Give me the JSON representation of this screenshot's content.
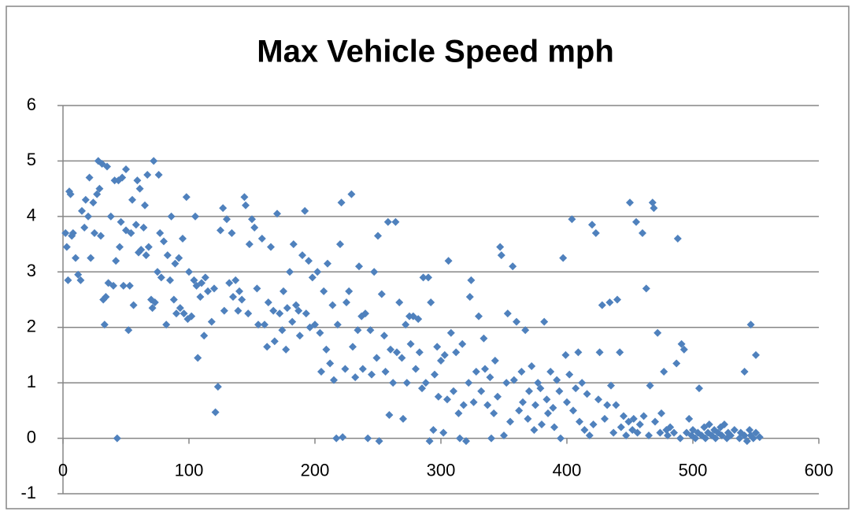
{
  "chart_data": {
    "type": "scatter",
    "title": "Max Vehicle Speed mph",
    "series": [
      {
        "color": "#4f81bd",
        "x": [
          2,
          3,
          4,
          5,
          6,
          7,
          8,
          10,
          12,
          14,
          15,
          17,
          18,
          20,
          21,
          22,
          24,
          25,
          27,
          28,
          29,
          30,
          31,
          32,
          33,
          34,
          35,
          36,
          38,
          40,
          41,
          42,
          43,
          44,
          45,
          46,
          47,
          48,
          50,
          50,
          52,
          53,
          54,
          55,
          56,
          58,
          59,
          60,
          61,
          62,
          64,
          65,
          66,
          67,
          68,
          70,
          71,
          72,
          73,
          75,
          76,
          77,
          78,
          80,
          82,
          83,
          85,
          86,
          88,
          89,
          90,
          92,
          93,
          95,
          96,
          98,
          99,
          100,
          102,
          104,
          105,
          106,
          107,
          109,
          110,
          112,
          113,
          115,
          118,
          120,
          121,
          123,
          125,
          127,
          128,
          130,
          132,
          134,
          135,
          137,
          139,
          140,
          142,
          144,
          145,
          147,
          148,
          150,
          152,
          154,
          155,
          158,
          160,
          162,
          163,
          165,
          167,
          168,
          170,
          172,
          174,
          175,
          177,
          178,
          180,
          182,
          183,
          185,
          187,
          188,
          190,
          192,
          193,
          195,
          196,
          198,
          200,
          202,
          204,
          205,
          207,
          209,
          210,
          212,
          214,
          215,
          217,
          218,
          220,
          221,
          222,
          224,
          225,
          227,
          229,
          230,
          232,
          234,
          235,
          237,
          238,
          240,
          242,
          244,
          245,
          247,
          249,
          250,
          251,
          253,
          255,
          256,
          258,
          259,
          260,
          262,
          264,
          265,
          267,
          269,
          270,
          272,
          273,
          275,
          276,
          278,
          280,
          282,
          283,
          285,
          286,
          288,
          290,
          291,
          292,
          294,
          295,
          297,
          298,
          300,
          302,
          303,
          305,
          306,
          308,
          310,
          312,
          314,
          315,
          317,
          318,
          320,
          322,
          323,
          324,
          326,
          328,
          330,
          332,
          334,
          335,
          337,
          339,
          340,
          342,
          343,
          345,
          347,
          348,
          350,
          352,
          353,
          355,
          357,
          358,
          360,
          362,
          364,
          365,
          367,
          369,
          370,
          372,
          374,
          375,
          377,
          379,
          380,
          382,
          384,
          385,
          387,
          389,
          390,
          392,
          394,
          395,
          397,
          399,
          400,
          402,
          404,
          405,
          407,
          409,
          410,
          412,
          414,
          416,
          418,
          420,
          421,
          423,
          425,
          426,
          428,
          430,
          432,
          434,
          435,
          437,
          439,
          440,
          442,
          443,
          445,
          447,
          449,
          450,
          452,
          453,
          455,
          456,
          458,
          460,
          461,
          463,
          465,
          466,
          468,
          469,
          470,
          472,
          474,
          475,
          477,
          479,
          480,
          482,
          485,
          487,
          488,
          490,
          491,
          493,
          495,
          497,
          499,
          500,
          502,
          504,
          505,
          507,
          509,
          510,
          512,
          513,
          515,
          517,
          518,
          520,
          522,
          523,
          525,
          527,
          528,
          530,
          541,
          533,
          546,
          537,
          538,
          550,
          541,
          543,
          545,
          546,
          548,
          550,
          553
        ],
        "values": [
          3.7,
          3.45,
          2.85,
          4.45,
          4.4,
          3.65,
          3.7,
          3.25,
          2.95,
          2.85,
          4.1,
          3.8,
          4.3,
          4.0,
          4.7,
          3.25,
          4.25,
          3.7,
          4.4,
          5.0,
          4.5,
          3.65,
          4.95,
          2.5,
          2.05,
          2.55,
          4.9,
          2.8,
          4.0,
          2.75,
          4.65,
          3.2,
          0.0,
          4.65,
          3.45,
          3.9,
          4.7,
          2.75,
          3.75,
          4.85,
          1.95,
          2.75,
          3.7,
          4.3,
          2.4,
          3.85,
          4.65,
          3.35,
          4.5,
          3.4,
          3.8,
          4.2,
          3.3,
          4.75,
          3.45,
          2.5,
          2.35,
          5.0,
          2.45,
          3.0,
          4.75,
          3.7,
          2.9,
          3.55,
          2.05,
          3.3,
          2.85,
          4.0,
          2.5,
          3.15,
          2.25,
          3.25,
          2.35,
          3.6,
          2.25,
          4.35,
          2.15,
          3.0,
          2.2,
          2.85,
          4.0,
          2.75,
          1.45,
          2.55,
          2.8,
          1.85,
          2.9,
          2.65,
          2.1,
          2.7,
          0.47,
          0.93,
          3.75,
          4.15,
          2.3,
          3.95,
          2.8,
          3.7,
          2.55,
          2.85,
          2.3,
          2.65,
          2.5,
          4.35,
          4.2,
          2.25,
          3.5,
          3.95,
          3.8,
          2.7,
          2.05,
          3.6,
          2.05,
          1.65,
          2.45,
          3.45,
          2.3,
          1.75,
          4.05,
          2.25,
          1.95,
          2.65,
          1.6,
          2.35,
          3.0,
          2.1,
          3.5,
          2.4,
          2.3,
          1.85,
          3.3,
          4.1,
          2.25,
          3.2,
          2.0,
          2.9,
          2.05,
          3.0,
          1.9,
          1.2,
          2.65,
          1.6,
          3.15,
          1.35,
          2.4,
          1.05,
          0.0,
          2.05,
          3.5,
          4.25,
          0.02,
          1.25,
          2.45,
          2.65,
          4.4,
          1.65,
          1.1,
          1.95,
          3.1,
          2.2,
          1.25,
          2.25,
          0.0,
          1.95,
          1.15,
          3.0,
          1.45,
          3.65,
          -0.05,
          2.6,
          1.85,
          1.2,
          3.9,
          0.42,
          1.6,
          1.0,
          3.9,
          1.55,
          2.45,
          1.45,
          0.35,
          2.05,
          1.0,
          2.2,
          1.7,
          2.2,
          1.25,
          2.15,
          1.55,
          0.9,
          2.9,
          1.0,
          2.9,
          -0.05,
          2.45,
          0.15,
          1.15,
          1.65,
          0.75,
          1.4,
          0.1,
          1.5,
          0.7,
          3.2,
          1.9,
          0.85,
          1.55,
          0.45,
          0.0,
          1.7,
          0.6,
          -0.05,
          1.0,
          2.55,
          2.85,
          0.65,
          1.2,
          2.2,
          0.85,
          1.8,
          1.25,
          0.6,
          1.1,
          0.0,
          0.45,
          1.4,
          0.75,
          3.45,
          3.3,
          0.05,
          1.0,
          2.25,
          0.3,
          3.1,
          1.05,
          2.1,
          0.5,
          1.2,
          0.65,
          1.95,
          0.35,
          0.85,
          1.3,
          0.15,
          0.6,
          1.0,
          0.9,
          0.25,
          2.1,
          0.7,
          0.45,
          1.2,
          0.55,
          0.2,
          1.05,
          0.85,
          0.0,
          3.25,
          1.5,
          0.65,
          1.15,
          3.95,
          0.5,
          0.9,
          1.55,
          0.3,
          1.0,
          0.15,
          0.8,
          0.05,
          3.85,
          0.25,
          3.7,
          0.7,
          1.55,
          2.4,
          0.35,
          0.6,
          2.45,
          0.95,
          0.1,
          0.6,
          2.5,
          1.55,
          0.2,
          0.4,
          0.05,
          0.3,
          4.25,
          0.15,
          0.35,
          3.9,
          0.1,
          0.25,
          3.7,
          0.4,
          2.7,
          0.05,
          0.95,
          4.25,
          4.15,
          0.3,
          1.9,
          0.1,
          0.45,
          1.2,
          0.15,
          0.05,
          0.2,
          0.1,
          1.35,
          3.6,
          0.0,
          1.7,
          1.6,
          0.1,
          0.35,
          0.05,
          0.15,
          0.0,
          0.1,
          0.9,
          0.05,
          0.2,
          0.0,
          0.1,
          0.25,
          0.05,
          0.15,
          0.0,
          0.1,
          0.2,
          0.05,
          0.25,
          0.0,
          0.1,
          0.05,
          1.2,
          0.15,
          2.05,
          0.0,
          0.1,
          1.5,
          0.05,
          -0.05,
          0.15,
          0.05,
          0.0,
          0.1,
          0.02
        ]
      }
    ],
    "xlim": [
      0,
      600
    ],
    "xticks": [
      0,
      100,
      200,
      300,
      400,
      500,
      600
    ],
    "ylim": [
      -1,
      6
    ],
    "yticks": [
      -1,
      0,
      1,
      2,
      3,
      4,
      5,
      6
    ],
    "grid": true
  }
}
